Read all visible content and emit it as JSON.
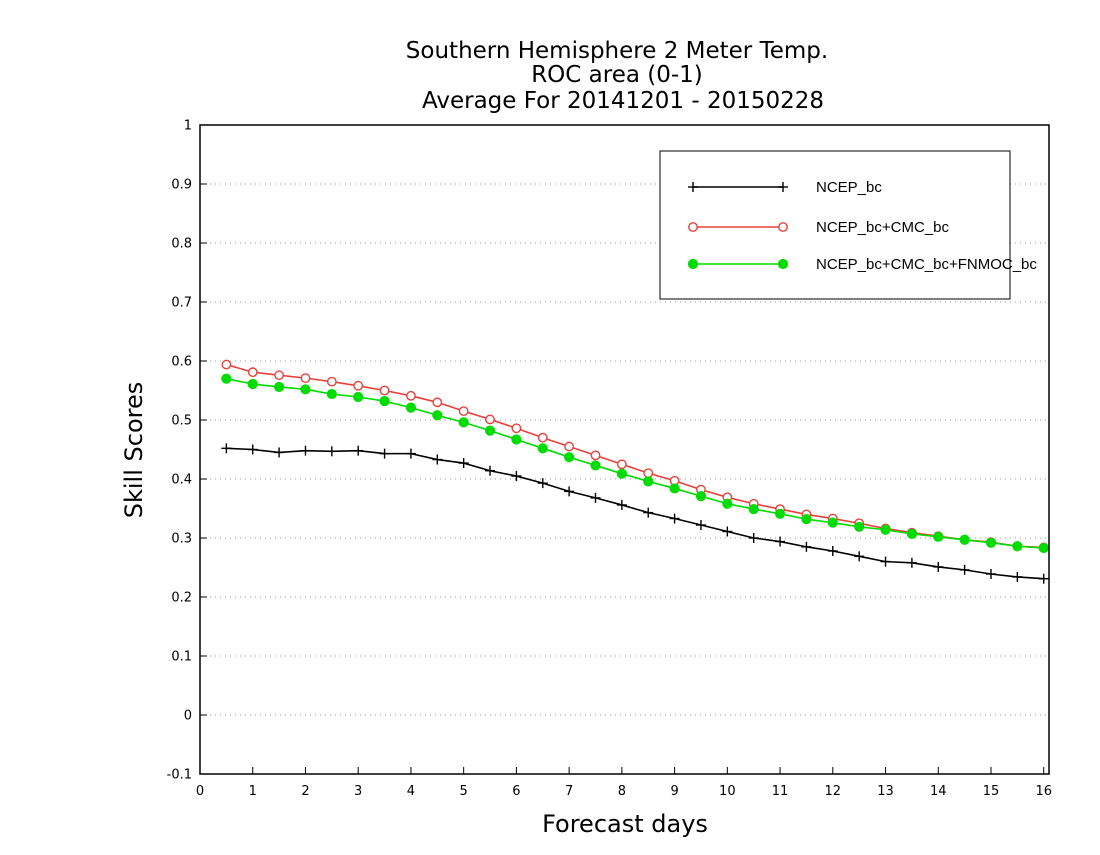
{
  "chart_data": {
    "type": "line",
    "title": [
      "Southern Hemisphere 2 Meter Temp.",
      "ROC area (0-1)",
      "Average For 20141201 - 20150228"
    ],
    "xlabel": "Forecast days",
    "ylabel": "Skill Scores",
    "xlim": [
      0,
      16.1
    ],
    "ylim": [
      -0.1,
      1
    ],
    "xticks": [
      "0",
      "1",
      "2",
      "3",
      "4",
      "5",
      "6",
      "7",
      "8",
      "9",
      "10",
      "11",
      "12",
      "13",
      "14",
      "15",
      "16"
    ],
    "yticks": [
      "-0.1",
      "0",
      "0.1",
      "0.2",
      "0.3",
      "0.4",
      "0.5",
      "0.6",
      "0.7",
      "0.8",
      "0.9",
      "1"
    ],
    "grid": "horizontal dotted",
    "legend_position": "top-right",
    "x": [
      0.5,
      1,
      1.5,
      2,
      2.5,
      3,
      3.5,
      4,
      4.5,
      5,
      5.5,
      6,
      6.5,
      7,
      7.5,
      8,
      8.5,
      9,
      9.5,
      10,
      10.5,
      11,
      11.5,
      12,
      12.5,
      13,
      13.5,
      14,
      14.5,
      15,
      15.5,
      16
    ],
    "series": [
      {
        "name": "NCEP_bc",
        "color": "#000000",
        "marker": "plus",
        "values": [
          0.452,
          0.45,
          0.445,
          0.448,
          0.447,
          0.448,
          0.443,
          0.443,
          0.433,
          0.427,
          0.414,
          0.405,
          0.393,
          0.379,
          0.368,
          0.356,
          0.343,
          0.333,
          0.322,
          0.311,
          0.3,
          0.294,
          0.285,
          0.278,
          0.269,
          0.26,
          0.258,
          0.251,
          0.246,
          0.239,
          0.234,
          0.231
        ]
      },
      {
        "name": "NCEP_bc+CMC_bc",
        "color": "#e8403a",
        "marker": "open-circle",
        "values": [
          0.594,
          0.581,
          0.576,
          0.571,
          0.565,
          0.558,
          0.55,
          0.541,
          0.53,
          0.515,
          0.501,
          0.486,
          0.47,
          0.455,
          0.44,
          0.425,
          0.41,
          0.397,
          0.382,
          0.369,
          0.358,
          0.349,
          0.34,
          0.333,
          0.325,
          0.316,
          0.309,
          0.303,
          0.297,
          0.293,
          0.286,
          0.284
        ]
      },
      {
        "name": "NCEP_bc+CMC_bc+FNMOC_bc",
        "color": "#00dc00",
        "marker": "filled-circle",
        "values": [
          0.57,
          0.561,
          0.556,
          0.552,
          0.544,
          0.539,
          0.532,
          0.521,
          0.508,
          0.496,
          0.482,
          0.467,
          0.452,
          0.437,
          0.423,
          0.409,
          0.396,
          0.384,
          0.371,
          0.358,
          0.349,
          0.341,
          0.332,
          0.326,
          0.319,
          0.314,
          0.307,
          0.302,
          0.297,
          0.292,
          0.286,
          0.283
        ]
      }
    ]
  }
}
